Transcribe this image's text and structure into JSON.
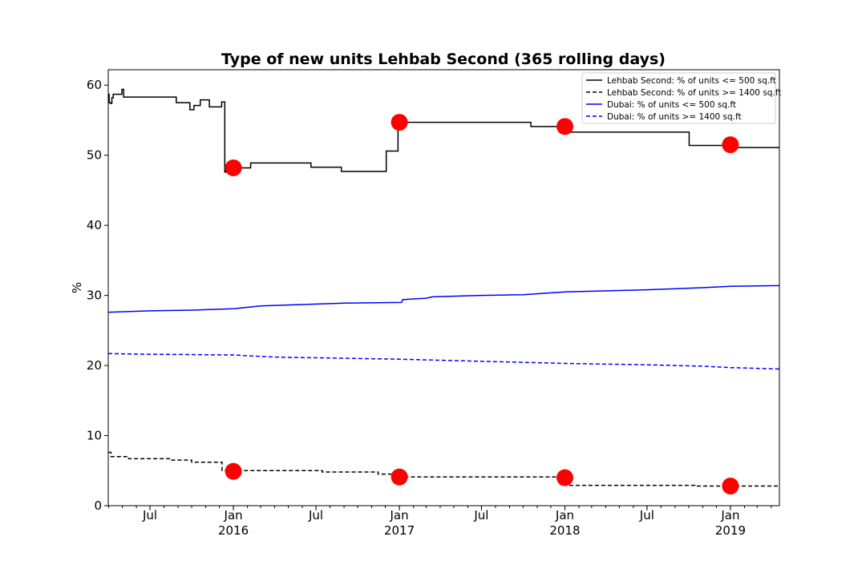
{
  "chart_data": {
    "type": "line",
    "title": "Type of new units Lehbab Second (365 rolling days)",
    "xlabel": "",
    "ylabel": "%",
    "ylim": [
      0,
      62.2
    ],
    "x_range": [
      "2015-03-31",
      "2019-04-19"
    ],
    "grid": false,
    "legend_position": "top-right",
    "yticks": [
      0,
      10,
      20,
      30,
      40,
      50,
      60
    ],
    "xticks": [
      {
        "date": "2015-07-01",
        "label": "Jul",
        "sublabel": ""
      },
      {
        "date": "2016-01-01",
        "label": "Jan",
        "sublabel": "2016"
      },
      {
        "date": "2016-07-01",
        "label": "Jul",
        "sublabel": ""
      },
      {
        "date": "2017-01-01",
        "label": "Jan",
        "sublabel": "2017"
      },
      {
        "date": "2017-07-01",
        "label": "Jul",
        "sublabel": ""
      },
      {
        "date": "2018-01-01",
        "label": "Jan",
        "sublabel": "2018"
      },
      {
        "date": "2018-07-01",
        "label": "Jul",
        "sublabel": ""
      },
      {
        "date": "2019-01-01",
        "label": "Jan",
        "sublabel": "2019"
      }
    ],
    "series": [
      {
        "name": "Lehbab Second: % of units <= 500 sq.ft",
        "color": "#000000",
        "dash": "solid",
        "step": true,
        "points": [
          [
            "2015-03-31",
            58.7
          ],
          [
            "2015-04-02",
            57.5
          ],
          [
            "2015-04-05",
            57.4
          ],
          [
            "2015-04-08",
            58.2
          ],
          [
            "2015-04-11",
            58.7
          ],
          [
            "2015-04-30",
            59.4
          ],
          [
            "2015-05-04",
            58.3
          ],
          [
            "2015-08-28",
            57.5
          ],
          [
            "2015-09-27",
            56.5
          ],
          [
            "2015-10-06",
            57.1
          ],
          [
            "2015-10-20",
            57.9
          ],
          [
            "2015-11-09",
            56.9
          ],
          [
            "2015-12-06",
            57.6
          ],
          [
            "2015-12-13",
            47.6
          ],
          [
            "2015-12-15",
            48.2
          ],
          [
            "2016-02-08",
            48.9
          ],
          [
            "2016-06-20",
            48.3
          ],
          [
            "2016-08-26",
            47.7
          ],
          [
            "2016-12-03",
            50.6
          ],
          [
            "2016-12-29",
            54.7
          ],
          [
            "2017-10-18",
            54.1
          ],
          [
            "2018-01-04",
            53.3
          ],
          [
            "2018-10-02",
            51.4
          ],
          [
            "2019-01-10",
            51.1
          ],
          [
            "2019-04-19",
            51.1
          ]
        ],
        "markers": [
          [
            "2016-01-01",
            48.2
          ],
          [
            "2017-01-01",
            54.7
          ],
          [
            "2018-01-01",
            54.1
          ],
          [
            "2019-01-01",
            51.5
          ]
        ]
      },
      {
        "name": "Lehbab Second: % of units >= 1400 sq.ft",
        "color": "#000000",
        "dash": "dashed",
        "step": true,
        "points": [
          [
            "2015-03-31",
            7.6
          ],
          [
            "2015-04-06",
            7.0
          ],
          [
            "2015-05-15",
            6.7
          ],
          [
            "2015-08-15",
            6.5
          ],
          [
            "2015-10-01",
            6.2
          ],
          [
            "2015-12-07",
            5.0
          ],
          [
            "2016-07-15",
            4.8
          ],
          [
            "2016-11-15",
            4.5
          ],
          [
            "2017-01-01",
            4.1
          ],
          [
            "2018-01-04",
            2.9
          ],
          [
            "2018-10-15",
            2.8
          ],
          [
            "2019-04-19",
            2.7
          ]
        ],
        "markers": [
          [
            "2016-01-01",
            4.9
          ],
          [
            "2017-01-01",
            4.1
          ],
          [
            "2018-01-01",
            4.0
          ],
          [
            "2019-01-01",
            2.8
          ]
        ]
      },
      {
        "name": "Dubai: % of units <= 500 sq.ft",
        "color": "#0000ff",
        "dash": "solid",
        "step": false,
        "points": [
          [
            "2015-03-31",
            27.6
          ],
          [
            "2015-07-01",
            27.8
          ],
          [
            "2015-10-01",
            27.9
          ],
          [
            "2016-01-01",
            28.1
          ],
          [
            "2016-03-01",
            28.5
          ],
          [
            "2016-06-01",
            28.7
          ],
          [
            "2016-09-01",
            28.9
          ],
          [
            "2017-01-06",
            29.0
          ],
          [
            "2017-01-08",
            29.4
          ],
          [
            "2017-03-01",
            29.6
          ],
          [
            "2017-03-15",
            29.8
          ],
          [
            "2017-07-01",
            30.0
          ],
          [
            "2017-10-01",
            30.1
          ],
          [
            "2018-01-01",
            30.5
          ],
          [
            "2018-07-01",
            30.8
          ],
          [
            "2018-11-01",
            31.1
          ],
          [
            "2019-01-01",
            31.3
          ],
          [
            "2019-04-19",
            31.4
          ]
        ]
      },
      {
        "name": "Dubai: % of units >= 1400 sq.ft",
        "color": "#0000ff",
        "dash": "dashed",
        "step": false,
        "points": [
          [
            "2015-03-31",
            21.7
          ],
          [
            "2015-07-01",
            21.6
          ],
          [
            "2016-01-01",
            21.5
          ],
          [
            "2016-04-01",
            21.2
          ],
          [
            "2017-01-01",
            20.9
          ],
          [
            "2017-07-01",
            20.6
          ],
          [
            "2018-01-01",
            20.3
          ],
          [
            "2018-07-01",
            20.1
          ],
          [
            "2018-11-01",
            19.9
          ],
          [
            "2019-01-01",
            19.7
          ],
          [
            "2019-04-19",
            19.5
          ]
        ]
      }
    ]
  }
}
